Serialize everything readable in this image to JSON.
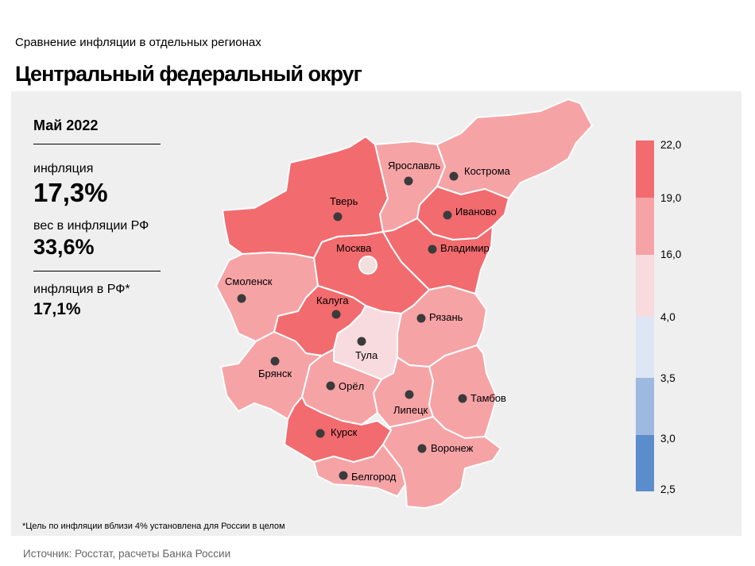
{
  "header": {
    "subtitle": "Сравнение  инфляции  в отдельных  регионах",
    "title": "Центральный федеральный округ"
  },
  "stats": {
    "period": "Май 2022",
    "inflation_label": "инфляция",
    "inflation_value": "17,3%",
    "weight_label": "вес в инфляции  РФ",
    "weight_value": "33,6%",
    "rf_label": "инфляция  в РФ*",
    "rf_value": "17,1%"
  },
  "footnote": "*Цель по инфляции вблизи 4% установлена для России в целом",
  "source": "Источник: Росстат, расчеты Банка России",
  "colors": {
    "bin_19_22": "#f26b6e",
    "bin_16_19": "#f6a3a6",
    "bin_4_16": "#f8dbdf",
    "bin_3_5_4": "#dde6f3",
    "bin_3_3_5": "#9db9df",
    "bin_2_5_3": "#5b8ccc",
    "panel": "#efeff0"
  },
  "legend": {
    "ticks": [
      "22,0",
      "19,0",
      "16,0",
      "4,0",
      "3,5",
      "3,0",
      "2,5"
    ]
  },
  "regions": [
    {
      "name": "Тверь",
      "bin": "19-22"
    },
    {
      "name": "Ярославль",
      "bin": "16-19"
    },
    {
      "name": "Кострома",
      "bin": "16-19"
    },
    {
      "name": "Иваново",
      "bin": "19-22"
    },
    {
      "name": "Владимир",
      "bin": "19-22"
    },
    {
      "name": "Москва",
      "bin": "19-22"
    },
    {
      "name": "Смоленск",
      "bin": "16-19"
    },
    {
      "name": "Калуга",
      "bin": "19-22"
    },
    {
      "name": "Тула",
      "bin": "4-16"
    },
    {
      "name": "Рязань",
      "bin": "16-19"
    },
    {
      "name": "Брянск",
      "bin": "16-19"
    },
    {
      "name": "Орёл",
      "bin": "16-19"
    },
    {
      "name": "Липецк",
      "bin": "16-19"
    },
    {
      "name": "Тамбов",
      "bin": "16-19"
    },
    {
      "name": "Курск",
      "bin": "19-22"
    },
    {
      "name": "Воронеж",
      "bin": "16-19"
    },
    {
      "name": "Белгород",
      "bin": "16-19"
    }
  ]
}
